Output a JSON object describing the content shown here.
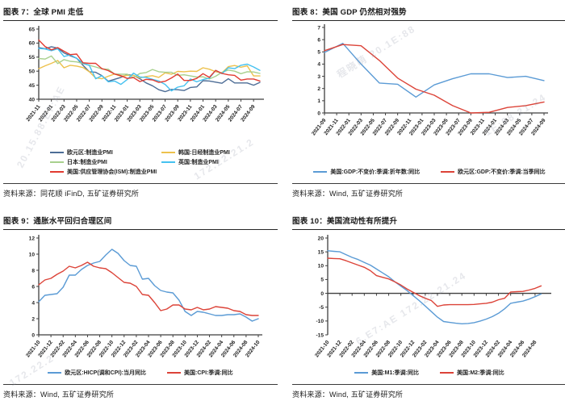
{
  "page": {
    "background": "#ffffff"
  },
  "watermarks": [
    "20.15.88.E7:AE",
    "程晓萌 20.1E:88",
    "1E:88 21.24",
    "172.22.21.2",
    "6.E7:AE 172.22.21.24",
    "172.22.2"
  ],
  "chart_data": [
    {
      "type": "line",
      "title": "图表 7：全球 PMI 走低",
      "source": "资料来源：同花顺 iFinD, 五矿证券研究所",
      "ylim": [
        40,
        65
      ],
      "ytick_step": 5,
      "x_span": 35,
      "x_step": 1,
      "x_axis_y": 40,
      "grid": false,
      "legend_position": "bottom",
      "x_labels": [
        "2021-11",
        "2022-01",
        "2022-03",
        "2022-05",
        "2022-07",
        "2022-09",
        "2022-11",
        "2023-01",
        "2023-03",
        "2023-05",
        "2023-07",
        "2023-09",
        "2023-11",
        "2024-01",
        "2024-03",
        "2024-05",
        "2024-07",
        "2024-09"
      ],
      "series": [
        {
          "name": "欧元区:制造业PMI",
          "color": "#4d6d96",
          "values": [
            58.4,
            58.0,
            58.7,
            58.2,
            56.5,
            55.5,
            54.6,
            52.1,
            49.8,
            49.6,
            48.4,
            46.4,
            47.1,
            47.8,
            48.8,
            48.5,
            47.3,
            45.8,
            44.8,
            43.4,
            42.7,
            43.5,
            43.4,
            43.1,
            44.2,
            44.4,
            46.6,
            46.5,
            46.1,
            45.7,
            47.3,
            45.8,
            45.8,
            45.8,
            45.0,
            46.0
          ]
        },
        {
          "name": "韩国:日经制造业PMI",
          "color": "#edc14d",
          "values": [
            50.9,
            51.9,
            52.8,
            53.8,
            51.2,
            52.1,
            51.8,
            51.3,
            49.8,
            47.6,
            47.3,
            48.2,
            49.0,
            48.2,
            48.5,
            48.5,
            47.6,
            48.1,
            48.4,
            47.8,
            49.4,
            48.9,
            49.9,
            49.8,
            50.0,
            49.9,
            51.2,
            50.7,
            49.8,
            49.4,
            51.6,
            52.0,
            51.4,
            51.9,
            48.3,
            48.3
          ]
        },
        {
          "name": "日本:制造业PMI",
          "color": "#a8d08d",
          "values": [
            54.5,
            54.3,
            55.4,
            52.7,
            54.1,
            53.5,
            53.3,
            52.7,
            52.1,
            51.5,
            50.8,
            50.7,
            49.0,
            48.9,
            48.9,
            47.7,
            49.2,
            49.5,
            50.6,
            49.8,
            49.6,
            49.6,
            48.5,
            48.7,
            48.3,
            47.9,
            48.0,
            47.2,
            48.2,
            49.6,
            50.4,
            50.0,
            49.1,
            49.8,
            49.7,
            49.2
          ]
        },
        {
          "name": "英国:制造业PMI",
          "color": "#45c1f0",
          "values": [
            58.1,
            57.9,
            57.3,
            58.0,
            55.2,
            55.8,
            54.6,
            52.8,
            52.1,
            47.3,
            48.4,
            46.2,
            46.5,
            45.3,
            47.0,
            49.3,
            47.9,
            47.8,
            47.1,
            46.5,
            45.3,
            43.0,
            44.3,
            44.8,
            47.2,
            46.2,
            47.0,
            47.5,
            50.3,
            49.1,
            51.2,
            50.9,
            52.1,
            52.5,
            51.5,
            50.3
          ]
        },
        {
          "name": "美国:供应管理协会(ISM):制造业PMI",
          "color": "#e23b31",
          "values": [
            61.1,
            58.8,
            57.6,
            58.4,
            57.1,
            55.9,
            56.1,
            53.0,
            52.8,
            52.8,
            50.9,
            50.2,
            49.0,
            48.4,
            47.4,
            47.7,
            46.3,
            47.1,
            46.9,
            46.0,
            46.4,
            47.6,
            49.0,
            46.7,
            46.7,
            47.4,
            49.1,
            47.8,
            50.3,
            49.2,
            48.7,
            48.5,
            46.8,
            47.2,
            47.2,
            46.5
          ]
        }
      ]
    },
    {
      "type": "line",
      "title": "图表 8：美国 GDP 仍然相对强势",
      "source": "资料来源：Wind, 五矿证券研究所",
      "ylim": [
        0,
        7
      ],
      "ytick_step": 1,
      "x_span": 36,
      "x_step": 3,
      "x_axis_y": 0,
      "grid": false,
      "legend_position": "bottom",
      "x_labels": [
        "2021-09",
        "2021-11",
        "2022-01",
        "2022-03",
        "2022-05",
        "2022-07",
        "2022-09",
        "2022-11",
        "2023-01",
        "2023-03",
        "2023-05",
        "2023-07",
        "2023-09",
        "2023-11",
        "2024-01",
        "2024-03",
        "2024-05",
        "2024-07",
        "2024-09"
      ],
      "series": [
        {
          "name": "美国:GDP:不变价:季调:折年数:同比",
          "color": "#5b9bd5",
          "values": [
            4.95,
            5.7,
            4.0,
            2.45,
            2.35,
            1.3,
            2.3,
            2.8,
            3.2,
            3.2,
            2.9,
            3.0,
            2.65
          ]
        },
        {
          "name": "欧元区:GDP:不变价:季调:当季同比",
          "color": "#dc4338",
          "values": [
            5.1,
            5.6,
            5.5,
            4.3,
            2.85,
            1.95,
            1.45,
            0.6,
            0.0,
            0.05,
            0.45,
            0.6,
            0.9
          ]
        }
      ]
    },
    {
      "type": "line",
      "title": "图表 9：通胀水平回归合理区间",
      "source": "资料来源：Wind, 五矿证券研究所",
      "ylim": [
        0,
        12
      ],
      "ytick_step": 2,
      "x_span": 36,
      "x_step": 1,
      "x_axis_y": 0,
      "grid": false,
      "legend_position": "bottom",
      "x_labels": [
        "2021-10",
        "2021-12",
        "2022-02",
        "2022-04",
        "2022-06",
        "2022-08",
        "2022-10",
        "2022-12",
        "2023-02",
        "2023-04",
        "2023-06",
        "2023-08",
        "2023-10",
        "2023-12",
        "2024-02",
        "2024-04",
        "2024-06",
        "2024-08",
        "2024-10"
      ],
      "series": [
        {
          "name": "欧元区:HICP(调和CPI):当月同比",
          "color": "#5b9bd5",
          "values": [
            4.1,
            4.9,
            5.0,
            5.1,
            5.9,
            7.4,
            7.4,
            8.1,
            8.6,
            8.9,
            9.1,
            9.9,
            10.6,
            10.1,
            9.2,
            8.6,
            8.5,
            6.9,
            7.0,
            6.1,
            5.5,
            5.3,
            5.2,
            4.3,
            2.9,
            2.4,
            2.9,
            2.8,
            2.6,
            2.4,
            2.4,
            2.5,
            2.5,
            2.6,
            2.2,
            1.7,
            2.0
          ]
        },
        {
          "name": "美国:CPI:季调:同比",
          "color": "#dc4338",
          "values": [
            6.2,
            6.8,
            7.0,
            7.5,
            7.9,
            8.5,
            8.3,
            8.6,
            9.0,
            8.5,
            8.3,
            8.2,
            7.7,
            7.1,
            6.5,
            6.4,
            6.0,
            5.0,
            4.9,
            4.0,
            3.0,
            3.2,
            3.7,
            3.7,
            3.2,
            3.1,
            3.4,
            3.1,
            3.2,
            3.5,
            3.4,
            3.3,
            3.0,
            2.9,
            2.5,
            2.4,
            2.4
          ]
        }
      ]
    },
    {
      "type": "line",
      "title": "图表 10：美国流动性有所提升",
      "source": "资料来源：Wind, 五矿证券研究所",
      "ylim": [
        -15,
        20
      ],
      "ytick_step": 5,
      "x_span": 36,
      "x_step": 1,
      "x_axis_y": 0,
      "grid": false,
      "legend_position": "bottom",
      "x_labels": [
        "2021-10",
        "2021-12",
        "2022-02",
        "2022-04",
        "2022-06",
        "2022-08",
        "2022-10",
        "2022-12",
        "2023-02",
        "2023-04",
        "2023-06",
        "2023-08",
        "2023-10",
        "2023-12",
        "2024-02",
        "2024-04",
        "2024-06",
        "2024-08"
      ],
      "series": [
        {
          "name": "美国:M1:季调:同比",
          "color": "#5b9bd5",
          "values": [
            15.4,
            15.2,
            15.0,
            14.0,
            13.0,
            12.2,
            11.2,
            10.2,
            8.8,
            7.4,
            6.0,
            4.2,
            2.6,
            1.0,
            -0.8,
            -2.6,
            -4.6,
            -6.6,
            -8.6,
            -10.2,
            -10.5,
            -10.8,
            -11.0,
            -10.9,
            -10.6,
            -10.0,
            -9.3,
            -8.4,
            -7.2,
            -5.6,
            -3.6,
            -3.2,
            -2.8,
            -2.1,
            -1.2,
            -0.2
          ]
        },
        {
          "name": "美国:M2:季调:同比",
          "color": "#dc4338",
          "values": [
            12.7,
            12.6,
            12.5,
            11.8,
            11.0,
            10.2,
            9.4,
            8.2,
            6.4,
            5.8,
            5.2,
            4.2,
            3.0,
            1.6,
            0.4,
            -0.8,
            -1.8,
            -2.6,
            -4.7,
            -4.2,
            -4.1,
            -4.1,
            -4.1,
            -4.1,
            -4.0,
            -3.8,
            -3.6,
            -3.2,
            -2.3,
            -1.8,
            0.5,
            0.6,
            0.7,
            1.2,
            1.8,
            2.7
          ]
        }
      ]
    }
  ]
}
